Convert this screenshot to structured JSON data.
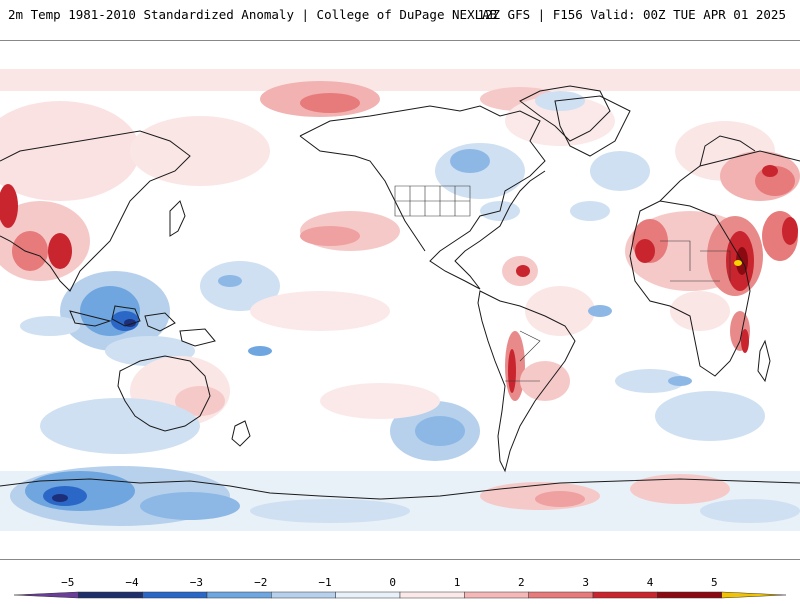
{
  "header": {
    "title": "2m Temp 1981-2010 Standardized Anomaly | College of DuPage NEXLAB",
    "run_info": "12Z GFS | F156 Valid: 00Z TUE APR 01 2025"
  },
  "colorbar": {
    "ticks": [
      "−5",
      "−4",
      "−3",
      "−2",
      "−1",
      "0",
      "1",
      "2",
      "3",
      "4",
      "5"
    ],
    "bins": [
      {
        "from": -6,
        "to": -5,
        "color": "#6a3d9a"
      },
      {
        "from": -5,
        "to": -4,
        "color": "#1f2f6b"
      },
      {
        "from": -4,
        "to": -3,
        "color": "#2b67c6"
      },
      {
        "from": -3,
        "to": -2,
        "color": "#6fa6e0"
      },
      {
        "from": -2,
        "to": -1,
        "color": "#b7d1ec"
      },
      {
        "from": -1,
        "to": 0,
        "color": "#e8f0f8"
      },
      {
        "from": 0,
        "to": 1,
        "color": "#fbe9e9"
      },
      {
        "from": 1,
        "to": 2,
        "color": "#f4b8b8"
      },
      {
        "from": 2,
        "to": 3,
        "color": "#e77a7a"
      },
      {
        "from": 3,
        "to": 4,
        "color": "#c9252f"
      },
      {
        "from": 4,
        "to": 5,
        "color": "#8b0a12"
      },
      {
        "from": 5,
        "to": 6,
        "color": "#f2c300"
      }
    ]
  },
  "map": {
    "anomaly_colors": {
      "light_red": "#f6c9c9",
      "mid_red": "#e88a8a",
      "dark_red": "#c21b24",
      "deep_red": "#8b0a12",
      "yellow": "#f5d400",
      "light_blue": "#cfe0f2",
      "mid_blue": "#8db8e6",
      "dark_blue": "#2f6fcf",
      "navy": "#1d2f78"
    }
  }
}
